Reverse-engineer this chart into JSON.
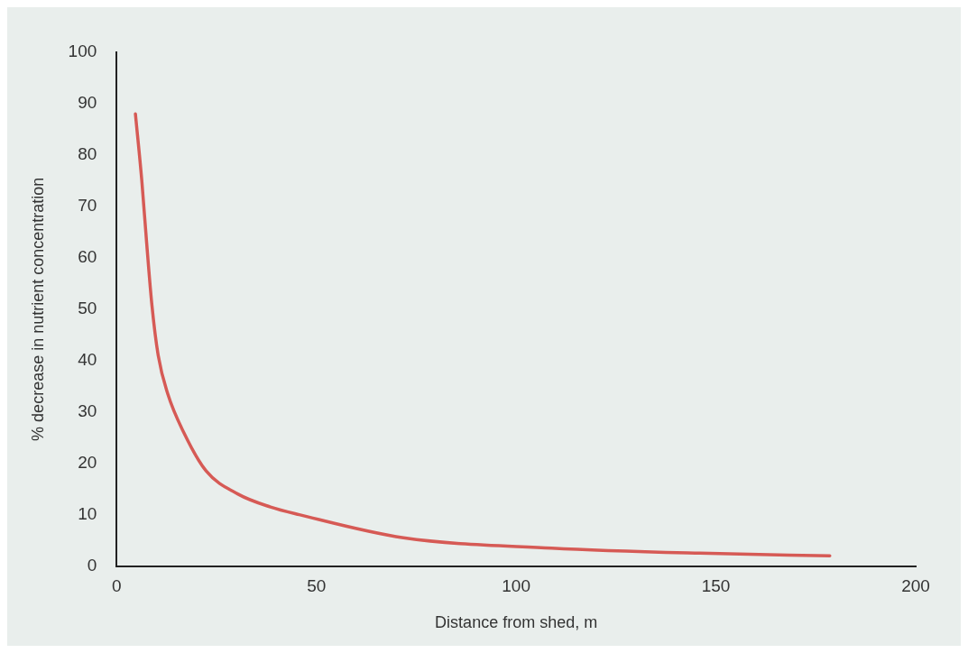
{
  "chart_data": {
    "type": "line",
    "xlabel": "Distance from shed, m",
    "ylabel": "% decrease in nutrient concentration",
    "x": [
      4.7,
      6.3,
      7.5,
      8.8,
      10.4,
      12.8,
      16.8,
      22.4,
      30.4,
      38.5,
      45.7,
      71.8,
      108.9,
      146,
      178.5
    ],
    "series": [
      {
        "color": "#d65a55",
        "values": [
          88,
          75,
          63,
          51,
          41,
          33.5,
          26,
          18.5,
          14,
          11.5,
          10,
          5.5,
          3.5,
          2.5,
          2
        ]
      }
    ],
    "xlim": [
      0,
      200
    ],
    "xticks": [
      0,
      50,
      100,
      150,
      200
    ],
    "ylim": [
      0,
      100
    ],
    "yticks": [
      0,
      10,
      20,
      30,
      40,
      50,
      60,
      70,
      80,
      90,
      100
    ],
    "grid": false,
    "legend": false,
    "marker": "none",
    "line_style": "solid"
  }
}
